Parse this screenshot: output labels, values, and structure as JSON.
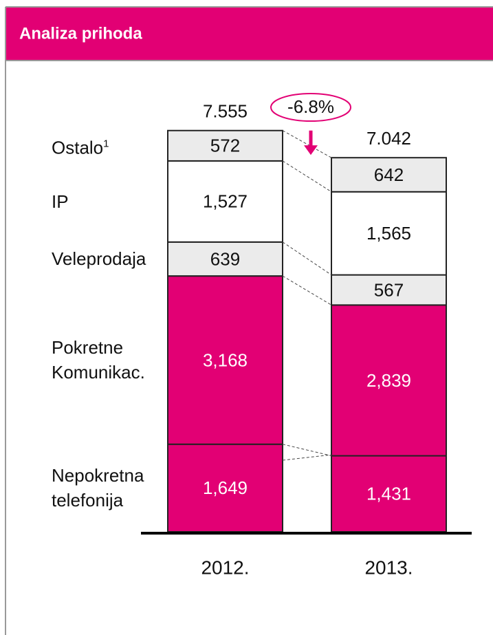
{
  "chart_data": {
    "type": "bar",
    "stacked": true,
    "title": "Analiza prihoda",
    "categories": [
      "2012.",
      "2013."
    ],
    "series": [
      {
        "name": "Nepokretna telefonija",
        "color": "#e20074",
        "values": [
          1649,
          1431
        ],
        "value_labels": [
          "1,649",
          "1,431"
        ]
      },
      {
        "name": "Pokretne Komunikac.",
        "color": "#e20074",
        "values": [
          3168,
          2839
        ],
        "value_labels": [
          "3,168",
          "2,839"
        ]
      },
      {
        "name": "Veleprodaja",
        "color": "#ebebeb",
        "values": [
          639,
          567
        ]
      },
      {
        "name": "IP",
        "color": "#ffffff",
        "values": [
          1527,
          1565
        ],
        "value_labels": [
          "1,527",
          "1,565"
        ]
      },
      {
        "name": "Ostalo",
        "note": "1",
        "color": "#ebebeb",
        "values": [
          572,
          642
        ]
      }
    ],
    "totals": [
      {
        "value": 7555,
        "label": "7.555"
      },
      {
        "value": 7042,
        "label": "7.042"
      }
    ],
    "change_annotation": "-6.8%"
  }
}
